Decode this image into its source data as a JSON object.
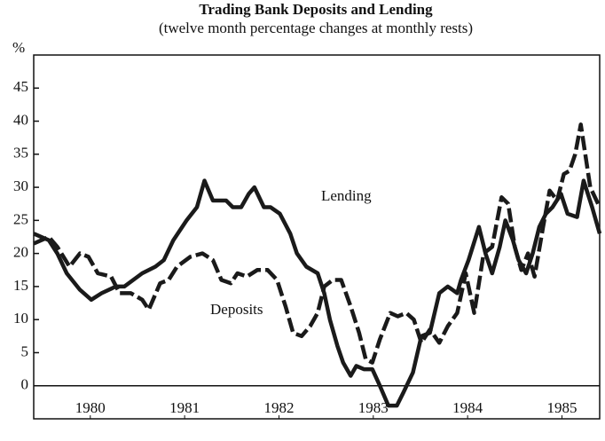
{
  "chart_data": {
    "type": "line",
    "title": "Trading Bank Deposits and Lending",
    "subtitle": "(twelve month percentage changes at monthly rests)",
    "y_label": "%",
    "xlim": [
      1979.9,
      1985.9
    ],
    "xticks": [
      {
        "value": 1980.5,
        "label": "1980"
      },
      {
        "value": 1981.5,
        "label": "1981"
      },
      {
        "value": 1982.5,
        "label": "1982"
      },
      {
        "value": 1983.5,
        "label": "1983"
      },
      {
        "value": 1984.5,
        "label": "1984"
      },
      {
        "value": 1985.5,
        "label": "1985"
      }
    ],
    "ylim": [
      -5,
      50
    ],
    "yticks": [
      0,
      5,
      10,
      15,
      20,
      25,
      30,
      35,
      40,
      45
    ],
    "series": [
      {
        "name": "Lending",
        "color": "#1a1a1a",
        "dashed": false,
        "x": [
          1979.9,
          1980.06,
          1980.15,
          1980.25,
          1980.39,
          1980.51,
          1980.62,
          1980.77,
          1980.86,
          1981.05,
          1981.19,
          1981.28,
          1981.38,
          1981.52,
          1981.63,
          1981.71,
          1981.8,
          1981.94,
          1982.01,
          1982.1,
          1982.18,
          1982.24,
          1982.34,
          1982.41,
          1982.51,
          1982.62,
          1982.69,
          1982.79,
          1982.91,
          1982.98,
          1983.04,
          1983.12,
          1983.18,
          1983.26,
          1983.32,
          1983.4,
          1983.49,
          1983.57,
          1983.66,
          1983.75,
          1983.82,
          1983.92,
          1984.01,
          1984.1,
          1984.2,
          1984.29,
          1984.39,
          1984.43,
          1984.51,
          1984.62,
          1984.69,
          1984.76,
          1984.84,
          1984.9,
          1984.98,
          1985.04,
          1985.12,
          1985.19,
          1985.26,
          1985.33,
          1985.4,
          1985.49,
          1985.56,
          1985.66,
          1985.73,
          1985.82,
          1985.9
        ],
        "values": [
          23,
          22,
          20,
          17,
          14.5,
          13,
          14,
          15,
          15,
          17,
          18,
          19,
          22,
          25,
          27,
          31,
          28,
          28,
          27,
          27,
          29,
          30,
          27,
          27,
          26,
          23,
          20,
          18,
          17,
          14,
          10,
          6,
          3.5,
          1.5,
          3,
          2.5,
          2.5,
          0,
          -3,
          -3,
          -1,
          2,
          7.5,
          8,
          14,
          15,
          14,
          16,
          19,
          24,
          20,
          17,
          21,
          25,
          22,
          19,
          17,
          20,
          24,
          26,
          27,
          29,
          26,
          25.5,
          31,
          27,
          23
        ]
      },
      {
        "name": "Deposits",
        "color": "#1a1a1a",
        "dashed": true,
        "x": [
          1979.9,
          1980.06,
          1980.15,
          1980.28,
          1980.39,
          1980.48,
          1980.58,
          1980.72,
          1980.81,
          1980.93,
          1981.05,
          1981.12,
          1981.24,
          1981.33,
          1981.42,
          1981.56,
          1981.69,
          1981.8,
          1981.89,
          1981.99,
          1982.06,
          1982.16,
          1982.27,
          1982.38,
          1982.48,
          1982.57,
          1982.65,
          1982.74,
          1982.83,
          1982.91,
          1982.98,
          1983.07,
          1983.16,
          1983.26,
          1983.35,
          1983.42,
          1983.49,
          1983.57,
          1983.68,
          1983.76,
          1983.85,
          1983.93,
          1984.01,
          1984.1,
          1984.2,
          1984.29,
          1984.39,
          1984.48,
          1984.57,
          1984.67,
          1984.76,
          1984.86,
          1984.93,
          1985.0,
          1985.07,
          1985.14,
          1985.21,
          1985.3,
          1985.37,
          1985.45,
          1985.52,
          1985.58,
          1985.64,
          1985.7,
          1985.8,
          1985.9
        ],
        "values": [
          21.5,
          22.5,
          21,
          18,
          20,
          19.5,
          17,
          16.5,
          14,
          14,
          13,
          11.5,
          15.5,
          16,
          18,
          19.5,
          20,
          19,
          16,
          15.5,
          17,
          16.5,
          17.5,
          17.5,
          16,
          12,
          8,
          7.5,
          9,
          11,
          15,
          16,
          16,
          12,
          8,
          4,
          3.5,
          7,
          11,
          10.5,
          11,
          10,
          6.5,
          8.5,
          6.5,
          9,
          11,
          17,
          11,
          20,
          21,
          28.5,
          27.5,
          21,
          17.5,
          20,
          16.5,
          24,
          29.5,
          28,
          32,
          32.5,
          35,
          39.5,
          30,
          27
        ]
      }
    ]
  }
}
